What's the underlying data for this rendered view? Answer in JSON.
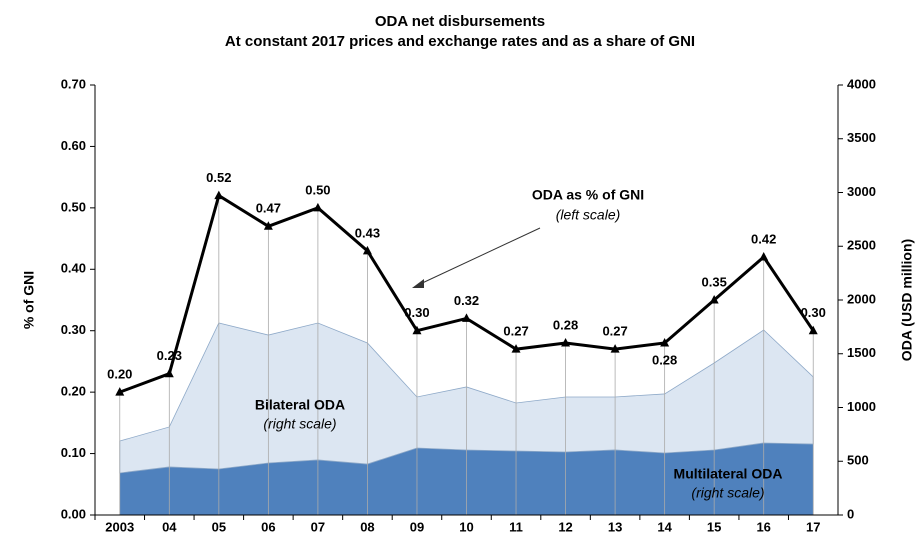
{
  "chart_data": {
    "type": "stacked-area-line",
    "title": "ODA net disbursements",
    "subtitle": "At constant 2017 prices and exchange rates and as a share of GNI",
    "y_label": "% of GNI",
    "y2_label": "ODA (USD million)",
    "categories": [
      "2003",
      "04",
      "05",
      "06",
      "07",
      "08",
      "09",
      "10",
      "11",
      "12",
      "13",
      "14",
      "15",
      "16",
      "17"
    ],
    "series": [
      {
        "name": "Multilateral ODA",
        "note": "(right scale)",
        "color": "#4f81bd",
        "axis": "y2",
        "values": [
          391,
          447,
          428,
          484,
          512,
          474,
          623,
          605,
          595,
          586,
          605,
          577,
          605,
          670,
          660
        ]
      },
      {
        "name": "Bilateral ODA",
        "note": "(right scale)",
        "color": "#dce6f2",
        "axis": "y2",
        "values": [
          297,
          372,
          1358,
          1190,
          1274,
          1126,
          475,
          586,
          447,
          512,
          493,
          549,
          809,
          1051,
          624
        ]
      },
      {
        "name": "ODA as % of GNI",
        "note": "(left scale)",
        "color": "#000000",
        "axis": "y",
        "values": [
          0.2,
          0.23,
          0.52,
          0.47,
          0.5,
          0.43,
          0.3,
          0.32,
          0.27,
          0.28,
          0.27,
          0.28,
          0.35,
          0.42,
          0.3
        ],
        "value_labels": [
          "0.20",
          "0.23",
          "0.52",
          "0.47",
          "0.50",
          "0.43",
          "0.30",
          "0.32",
          "0.27",
          "0.28",
          "0.27",
          "0.28",
          "0.35",
          "0.42",
          "0.30"
        ]
      }
    ],
    "ylim": [
      0,
      0.7
    ],
    "yticks": [
      {
        "value": 0,
        "label": "0.00"
      },
      {
        "value": 0.1,
        "label": "0.10"
      },
      {
        "value": 0.2,
        "label": "0.20"
      },
      {
        "value": 0.3,
        "label": "0.30"
      },
      {
        "value": 0.4,
        "label": "0.40"
      },
      {
        "value": 0.5,
        "label": "0.50"
      },
      {
        "value": 0.6,
        "label": "0.60"
      },
      {
        "value": 0.7,
        "label": "0.70"
      }
    ],
    "y2lim": [
      0,
      4000
    ],
    "y2ticks": [
      0,
      500,
      1000,
      1500,
      2000,
      2500,
      3000,
      3500,
      4000
    ]
  }
}
